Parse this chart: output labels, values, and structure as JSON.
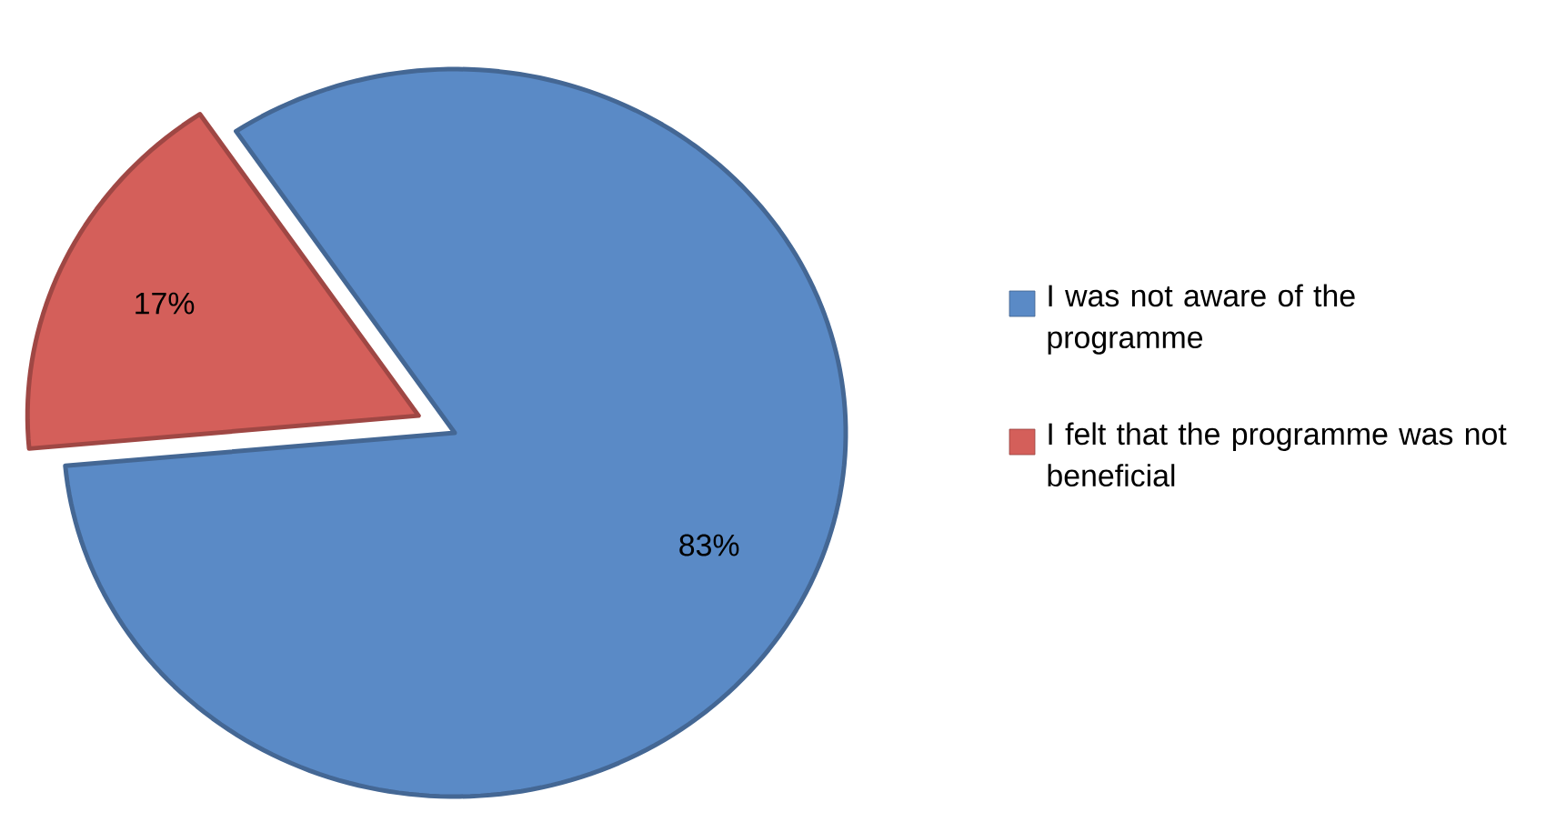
{
  "chart_data": {
    "type": "pie",
    "categories": [
      "I was not aware of the programme",
      "I felt that the programme was not beneficial"
    ],
    "values": [
      83,
      17
    ],
    "colors": [
      "#5a8ac6",
      "#d45f5a"
    ],
    "value_labels": [
      "83%",
      "17%"
    ],
    "legend": "right"
  }
}
